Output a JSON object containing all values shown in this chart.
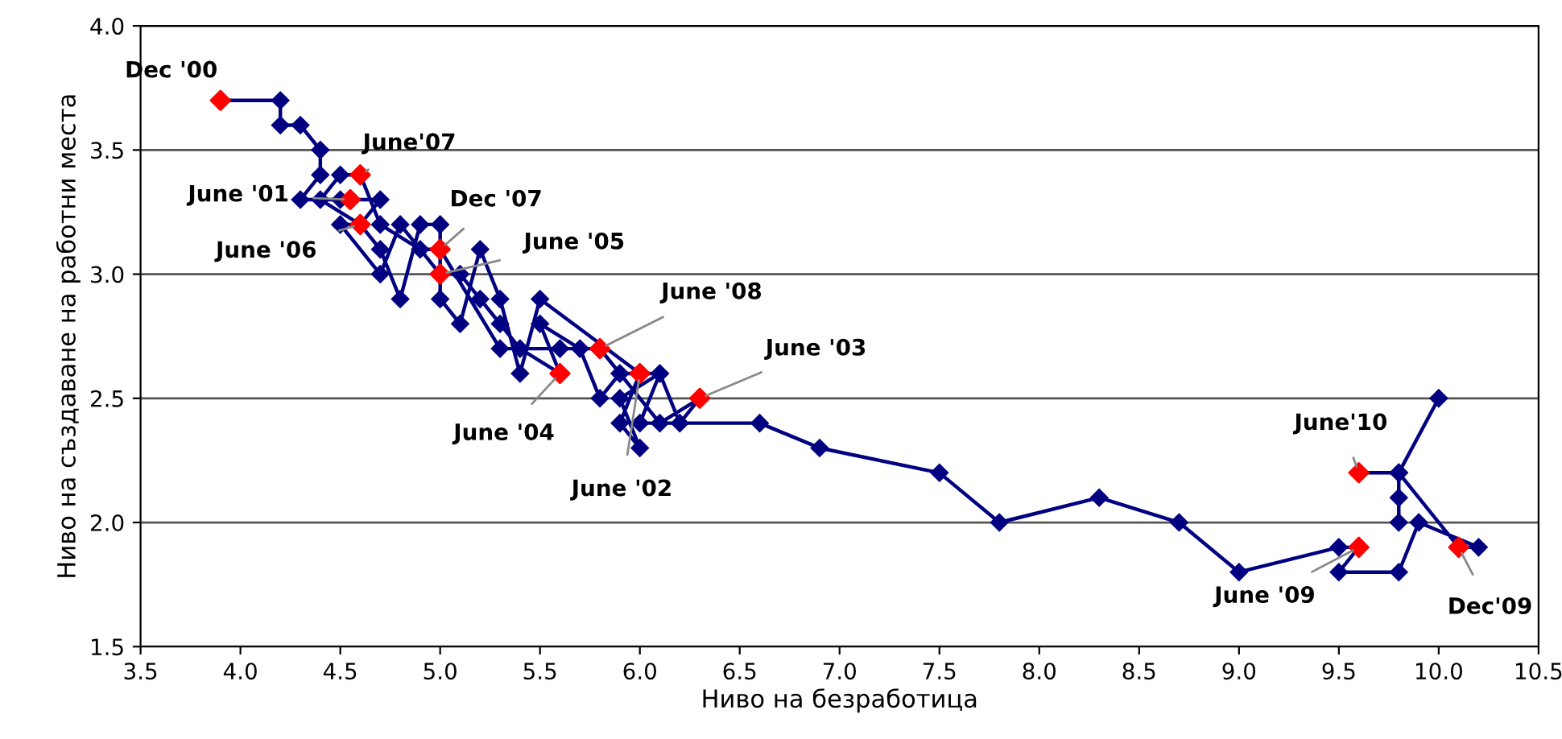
{
  "chart_data": {
    "type": "line",
    "xlabel": "Ниво на безработица",
    "ylabel": "Ниво на създаване на работни места",
    "xlim": [
      3.5,
      10.5
    ],
    "ylim": [
      1.5,
      4.0
    ],
    "xticks": [
      3.5,
      {
        "value": 4,
        "label": "4.0"
      },
      4.5,
      {
        "value": 5,
        "label": "5.0"
      },
      5.5,
      {
        "value": 6,
        "label": "6.0"
      },
      6.5,
      {
        "value": 7,
        "label": "7.0"
      },
      7.5,
      {
        "value": 8,
        "label": "8.0"
      },
      8.5,
      {
        "value": 9,
        "label": "9.0"
      },
      9.5,
      {
        "value": 10,
        "label": "10.0"
      },
      10.5
    ],
    "yticks": [
      1.5,
      {
        "value": 2,
        "label": "2.0"
      },
      2.5,
      {
        "value": 3,
        "label": "3.0"
      },
      3.5,
      {
        "value": 4,
        "label": "4.0"
      }
    ],
    "grid": "y",
    "marker": "diamond",
    "line_style": "solid",
    "legend": false,
    "series": [
      {
        "color": "#000080",
        "x": [
          3.9,
          4.2,
          4.2,
          4.3,
          4.4,
          4.4,
          4.3,
          4.5,
          4.55,
          4.7,
          4.6,
          4.7,
          4.8,
          4.9,
          5.0,
          5.0,
          5.1,
          5.2,
          5.3,
          5.4,
          5.5,
          6.0,
          5.9,
          6.0,
          5.9,
          6.1,
          6.2,
          6.3,
          6.1,
          5.9,
          5.8,
          5.7,
          5.5,
          5.6,
          5.4,
          5.3,
          5.2,
          5.1,
          5.0,
          4.8,
          4.7,
          4.5,
          4.6,
          4.4,
          4.5,
          4.6,
          4.7,
          4.9,
          5.0,
          5.3,
          5.6,
          5.8,
          5.9,
          6.1,
          6.0,
          6.6,
          6.9,
          7.5,
          7.8,
          8.3,
          8.7,
          9.0,
          9.5,
          9.6,
          9.5,
          9.8,
          9.9,
          10.2,
          10.1,
          9.8,
          10.0,
          9.8,
          9.8,
          9.8,
          9.8,
          10.0,
          9.8,
          9.6
        ],
        "values": [
          3.7,
          3.7,
          3.6,
          3.6,
          3.5,
          3.4,
          3.3,
          3.3,
          3.3,
          3.3,
          3.2,
          3.1,
          2.9,
          3.2,
          3.2,
          2.9,
          2.8,
          3.1,
          2.9,
          2.6,
          2.9,
          2.6,
          2.4,
          2.3,
          2.5,
          2.6,
          2.4,
          2.5,
          2.4,
          2.6,
          2.5,
          2.7,
          2.8,
          2.6,
          2.7,
          2.8,
          2.9,
          3.0,
          3.0,
          3.2,
          3.0,
          3.2,
          3.2,
          3.3,
          3.4,
          3.4,
          3.2,
          3.1,
          3.1,
          2.7,
          2.7,
          2.7,
          2.6,
          2.6,
          2.4,
          2.4,
          2.3,
          2.2,
          2.0,
          2.1,
          2.0,
          1.8,
          1.9,
          1.9,
          1.8,
          1.8,
          2.0,
          1.9,
          1.9,
          2.2,
          2.5,
          2.2,
          2.1,
          2.0,
          2.2,
          2.5,
          2.2,
          2.2
        ]
      },
      {
        "type": "scatter",
        "color": "#ff0000",
        "x": [
          3.9,
          4.6,
          4.55,
          5.0,
          5.0,
          4.6,
          5.8,
          6.3,
          5.6,
          6.0,
          9.6,
          9.6,
          10.1
        ],
        "values": [
          3.7,
          3.4,
          3.3,
          3.1,
          3.0,
          3.2,
          2.7,
          2.5,
          2.6,
          2.6,
          2.2,
          1.9,
          1.9
        ]
      }
    ],
    "annotations": [
      {
        "text": "Dec '00",
        "x": 3.9,
        "y": 3.7
      },
      {
        "text": "June'07",
        "x": 4.6,
        "y": 3.4
      },
      {
        "text": "June '01",
        "x": 4.55,
        "y": 3.3
      },
      {
        "text": "Dec '07",
        "x": 5.0,
        "y": 3.1
      },
      {
        "text": "June '05",
        "x": 5.0,
        "y": 3.0
      },
      {
        "text": "June '06",
        "x": 4.6,
        "y": 3.2
      },
      {
        "text": "June '08",
        "x": 5.8,
        "y": 2.7
      },
      {
        "text": "June '03",
        "x": 6.3,
        "y": 2.5
      },
      {
        "text": "June '04",
        "x": 5.6,
        "y": 2.6
      },
      {
        "text": "June '02",
        "x": 6.0,
        "y": 2.6
      },
      {
        "text": "June'10",
        "x": 9.6,
        "y": 2.2
      },
      {
        "text": "June '09",
        "x": 9.6,
        "y": 1.9
      },
      {
        "text": "Dec'09",
        "x": 10.1,
        "y": 1.9
      }
    ]
  }
}
